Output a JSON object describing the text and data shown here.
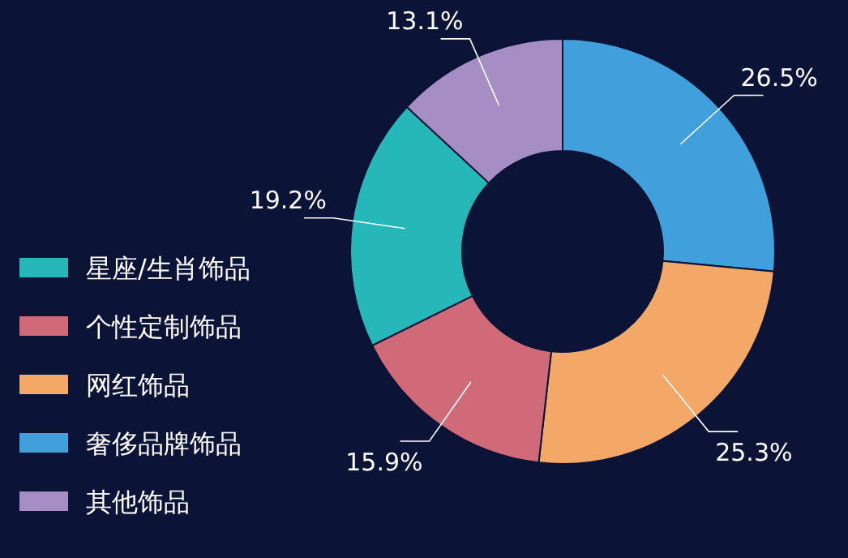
{
  "chart_data": {
    "type": "donut",
    "categories": [
      "奢侈品牌饰品",
      "网红饰品",
      "个性定制饰品",
      "星座/生肖饰品",
      "其他饰品"
    ],
    "values": [
      26.5,
      25.3,
      15.9,
      19.2,
      13.1
    ],
    "colors": [
      "#40a0dc",
      "#f4a867",
      "#d16a78",
      "#26b8b8",
      "#a58ec4"
    ],
    "value_labels": [
      "26.5%",
      "25.3%",
      "15.9%",
      "19.2%",
      "13.1%"
    ],
    "legend": "left"
  }
}
